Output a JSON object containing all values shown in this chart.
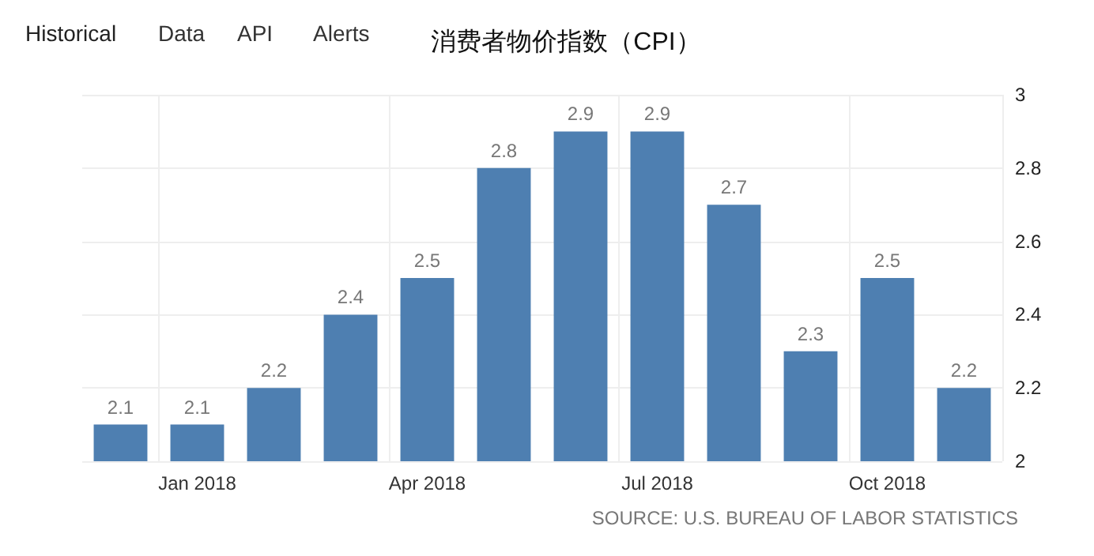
{
  "chart_data": {
    "type": "bar",
    "title": "消费者物价指数（CPI）",
    "categories": [
      null,
      "Jan 2018",
      null,
      null,
      "Apr 2018",
      null,
      null,
      "Jul 2018",
      null,
      null,
      "Oct 2018",
      null
    ],
    "values": [
      2.1,
      2.1,
      2.2,
      2.4,
      2.5,
      2.8,
      2.9,
      2.9,
      2.7,
      2.3,
      2.5,
      2.2
    ],
    "color": "#4e7fb1",
    "ylim": [
      2,
      3
    ],
    "yticks": [
      2,
      2.2,
      2.4,
      2.6,
      2.8,
      3
    ],
    "grid": true,
    "data_labels": true,
    "annotations": [
      "Historical",
      "Data",
      "API",
      "Alerts",
      "SOURCE: U.S. BUREAU OF LABOR STATISTICS"
    ]
  }
}
